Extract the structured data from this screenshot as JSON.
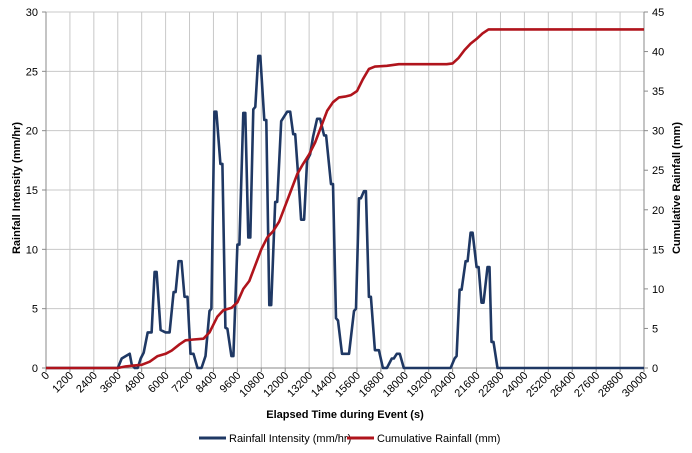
{
  "chart_data": {
    "type": "line",
    "title": "",
    "xlabel": "Elapsed Time during Event (s)",
    "ylabel_left": "Rainfall Intensity (mm/hr)",
    "ylabel_right": "Cumulative Rainfall (mm)",
    "xlim": [
      0,
      30000
    ],
    "ylim_left": [
      0,
      30
    ],
    "ylim_right": [
      0,
      45
    ],
    "x_ticks": [
      "0",
      "1200",
      "2400",
      "3600",
      "4800",
      "6000",
      "7200",
      "8400",
      "9600",
      "10800",
      "12000",
      "13200",
      "14400",
      "15600",
      "16800",
      "18000",
      "19200",
      "20400",
      "21600",
      "22800",
      "24000",
      "25200",
      "26400",
      "27600",
      "28800",
      "30000"
    ],
    "y_left_ticks": [
      "0",
      "5",
      "10",
      "15",
      "20",
      "25",
      "30"
    ],
    "y_right_ticks": [
      "0",
      "5",
      "10",
      "15",
      "20",
      "25",
      "30",
      "35",
      "40",
      "45"
    ],
    "grid": true,
    "legend_position": "bottom",
    "series": [
      {
        "name": "Rainfall Intensity (mm/hr)",
        "axis": "left",
        "color": "#1f3864",
        "points": [
          [
            0,
            0
          ],
          [
            3600,
            0
          ],
          [
            3800,
            0.8
          ],
          [
            4000,
            1
          ],
          [
            4200,
            1.2
          ],
          [
            4300,
            0.3
          ],
          [
            4450,
            0
          ],
          [
            4600,
            0
          ],
          [
            4750,
            0.8
          ],
          [
            4900,
            1.3
          ],
          [
            5100,
            3
          ],
          [
            5300,
            3
          ],
          [
            5450,
            8.1
          ],
          [
            5550,
            8.1
          ],
          [
            5750,
            3.2
          ],
          [
            6000,
            3
          ],
          [
            6200,
            3
          ],
          [
            6400,
            6.4
          ],
          [
            6500,
            6.4
          ],
          [
            6650,
            9
          ],
          [
            6800,
            9
          ],
          [
            6950,
            6
          ],
          [
            7100,
            6
          ],
          [
            7250,
            1.2
          ],
          [
            7400,
            1.2
          ],
          [
            7600,
            0
          ],
          [
            7800,
            0
          ],
          [
            8000,
            1
          ],
          [
            8200,
            4.8
          ],
          [
            8300,
            5
          ],
          [
            8450,
            21.6
          ],
          [
            8550,
            21.6
          ],
          [
            8750,
            17.2
          ],
          [
            8850,
            17.2
          ],
          [
            9000,
            3.4
          ],
          [
            9100,
            3.3
          ],
          [
            9300,
            1
          ],
          [
            9400,
            1
          ],
          [
            9600,
            10.4
          ],
          [
            9700,
            10.4
          ],
          [
            9900,
            21.5
          ],
          [
            10000,
            21.5
          ],
          [
            10150,
            11
          ],
          [
            10250,
            11
          ],
          [
            10400,
            21.8
          ],
          [
            10500,
            22
          ],
          [
            10650,
            26.3
          ],
          [
            10750,
            26.3
          ],
          [
            10950,
            20.9
          ],
          [
            11050,
            20.9
          ],
          [
            11200,
            5.3
          ],
          [
            11300,
            5.3
          ],
          [
            11500,
            14
          ],
          [
            11600,
            14
          ],
          [
            11800,
            20.8
          ],
          [
            11950,
            21.2
          ],
          [
            12100,
            21.6
          ],
          [
            12250,
            21.6
          ],
          [
            12400,
            19.7
          ],
          [
            12500,
            19.7
          ],
          [
            12700,
            15
          ],
          [
            12800,
            12.5
          ],
          [
            12950,
            12.5
          ],
          [
            13100,
            17.5
          ],
          [
            13250,
            18
          ],
          [
            13400,
            19.5
          ],
          [
            13600,
            21
          ],
          [
            13750,
            21
          ],
          [
            13950,
            19.6
          ],
          [
            14050,
            19.6
          ],
          [
            14300,
            15.5
          ],
          [
            14400,
            15.5
          ],
          [
            14550,
            4.2
          ],
          [
            14650,
            4
          ],
          [
            14850,
            1.2
          ],
          [
            15000,
            1.2
          ],
          [
            15200,
            1.2
          ],
          [
            15450,
            4.8
          ],
          [
            15550,
            5
          ],
          [
            15700,
            14.3
          ],
          [
            15800,
            14.3
          ],
          [
            15950,
            14.9
          ],
          [
            16050,
            14.9
          ],
          [
            16200,
            6
          ],
          [
            16300,
            6
          ],
          [
            16500,
            1.5
          ],
          [
            16700,
            1.5
          ],
          [
            16900,
            0
          ],
          [
            17100,
            0
          ],
          [
            17350,
            0.8
          ],
          [
            17450,
            0.8
          ],
          [
            17600,
            1.2
          ],
          [
            17750,
            1.2
          ],
          [
            17950,
            0
          ],
          [
            20300,
            0
          ],
          [
            20500,
            0.8
          ],
          [
            20600,
            1
          ],
          [
            20750,
            6.6
          ],
          [
            20850,
            6.6
          ],
          [
            21050,
            9
          ],
          [
            21150,
            9
          ],
          [
            21300,
            11.4
          ],
          [
            21400,
            11.4
          ],
          [
            21600,
            8.5
          ],
          [
            21700,
            8.5
          ],
          [
            21850,
            5.5
          ],
          [
            21950,
            5.5
          ],
          [
            22150,
            8.5
          ],
          [
            22250,
            8.5
          ],
          [
            22350,
            2.2
          ],
          [
            22450,
            2.2
          ],
          [
            22650,
            0
          ],
          [
            30000,
            0
          ]
        ]
      },
      {
        "name": "Cumulative Rainfall (mm)",
        "axis": "right",
        "color": "#b0141c",
        "points": [
          [
            0,
            0
          ],
          [
            3600,
            0
          ],
          [
            4000,
            0.2
          ],
          [
            4400,
            0.3
          ],
          [
            4800,
            0.4
          ],
          [
            5200,
            0.8
          ],
          [
            5600,
            1.5
          ],
          [
            6000,
            1.8
          ],
          [
            6300,
            2.2
          ],
          [
            6700,
            3
          ],
          [
            7000,
            3.5
          ],
          [
            7400,
            3.6
          ],
          [
            7900,
            3.7
          ],
          [
            8200,
            4.5
          ],
          [
            8600,
            6.5
          ],
          [
            8900,
            7.3
          ],
          [
            9300,
            7.6
          ],
          [
            9600,
            8.3
          ],
          [
            9900,
            10
          ],
          [
            10200,
            11
          ],
          [
            10500,
            13
          ],
          [
            10800,
            15
          ],
          [
            11100,
            16.5
          ],
          [
            11400,
            17.3
          ],
          [
            11700,
            18.5
          ],
          [
            12000,
            20.5
          ],
          [
            12300,
            22.5
          ],
          [
            12600,
            24.5
          ],
          [
            12900,
            25.8
          ],
          [
            13200,
            27
          ],
          [
            13500,
            28.5
          ],
          [
            13800,
            30.5
          ],
          [
            14100,
            32.5
          ],
          [
            14400,
            33.6
          ],
          [
            14700,
            34.2
          ],
          [
            15000,
            34.3
          ],
          [
            15300,
            34.5
          ],
          [
            15600,
            35
          ],
          [
            15900,
            36.5
          ],
          [
            16200,
            37.8
          ],
          [
            16500,
            38.1
          ],
          [
            17100,
            38.2
          ],
          [
            17700,
            38.4
          ],
          [
            20100,
            38.4
          ],
          [
            20400,
            38.5
          ],
          [
            20700,
            39.2
          ],
          [
            21000,
            40.2
          ],
          [
            21300,
            41
          ],
          [
            21600,
            41.6
          ],
          [
            21900,
            42.3
          ],
          [
            22200,
            42.8
          ],
          [
            22500,
            42.8
          ],
          [
            30000,
            42.8
          ]
        ]
      }
    ]
  }
}
